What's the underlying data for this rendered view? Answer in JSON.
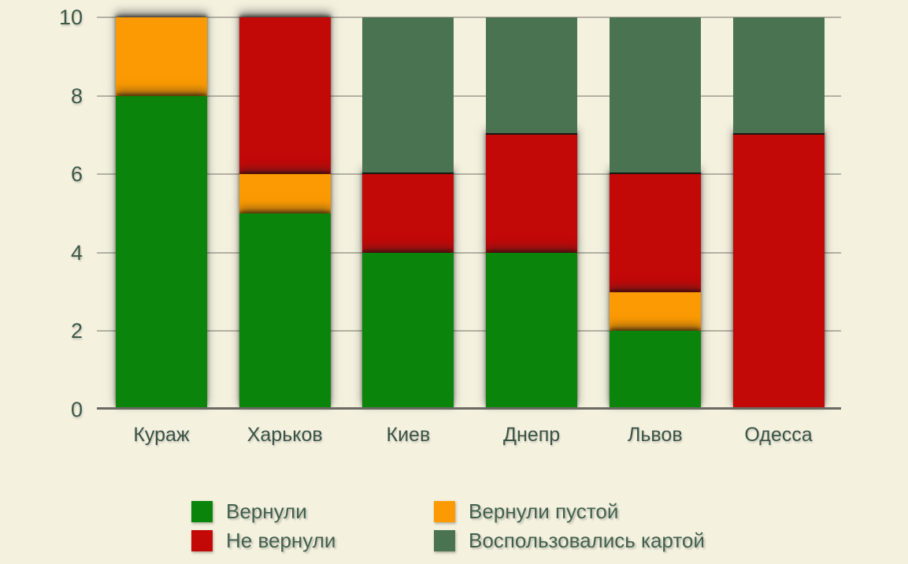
{
  "chart_data": {
    "type": "bar",
    "stacked": true,
    "title": "",
    "xlabel": "",
    "ylabel": "",
    "categories": [
      "Кураж",
      "Харьков",
      "Киев",
      "Днепр",
      "Львов",
      "Одесса"
    ],
    "series": [
      {
        "name": "Вернули",
        "color": "#0a840a",
        "values": [
          8,
          5,
          4,
          4,
          2,
          0
        ]
      },
      {
        "name": "Вернули пустой",
        "color": "#fb9a02",
        "values": [
          2,
          1,
          0,
          0,
          1,
          0
        ]
      },
      {
        "name": "Не вернули",
        "color": "#c30808",
        "values": [
          0,
          4,
          2,
          3,
          3,
          7
        ]
      },
      {
        "name": "Воспользовались картой",
        "color": "#4a7351",
        "values": [
          0,
          0,
          4,
          3,
          4,
          3
        ]
      }
    ],
    "totals": [
      10,
      10,
      10,
      10,
      10,
      10
    ],
    "ylim": [
      0,
      10
    ],
    "yticks": [
      0,
      2,
      4,
      6,
      8,
      10
    ],
    "grid": true,
    "legend_position": "bottom",
    "legend_columns": [
      [
        0,
        2
      ],
      [
        1,
        3
      ]
    ]
  },
  "colors": {
    "background": "#f4f1df",
    "gridline": "#b3b1a4",
    "baseline": "#6b6a62",
    "tick_text": "#3c5847",
    "category_text": "#3a5346",
    "legend_text": "#41604c"
  }
}
